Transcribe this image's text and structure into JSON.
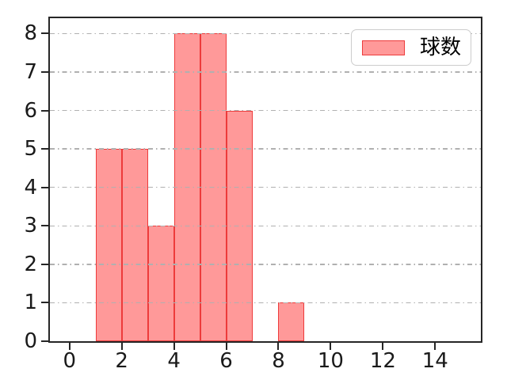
{
  "figure": {
    "background": "#ffffff",
    "spine_color": "#262626",
    "tick_label_color": "#1a1a1a",
    "grid_color": "#b0b0b0",
    "bar_fill": "#ff9999",
    "bar_edge": "#ed3b3b"
  },
  "legend": {
    "label": "球数",
    "position": "upper right",
    "swatch_fill": "#ff9999",
    "swatch_edge": "#ed3b3b"
  },
  "chart_data": {
    "type": "bar",
    "subtype": "histogram",
    "title": "",
    "xlabel": "",
    "ylabel": "",
    "xlim": [
      -0.75,
      15.75
    ],
    "ylim": [
      0,
      8.4
    ],
    "xticks": [
      0,
      2,
      4,
      6,
      8,
      10,
      12,
      14
    ],
    "yticks": [
      0,
      1,
      2,
      3,
      4,
      5,
      6,
      7,
      8
    ],
    "grid": {
      "axis": "y",
      "style": "dash-dot",
      "color": "#b0b0b0"
    },
    "legend_position": "upper right",
    "series": [
      {
        "name": "球数",
        "bin_edges": [
          1,
          2,
          3,
          4,
          5,
          6,
          7,
          8,
          9
        ],
        "counts": [
          5,
          5,
          3,
          8,
          8,
          6,
          0,
          1
        ]
      }
    ]
  }
}
